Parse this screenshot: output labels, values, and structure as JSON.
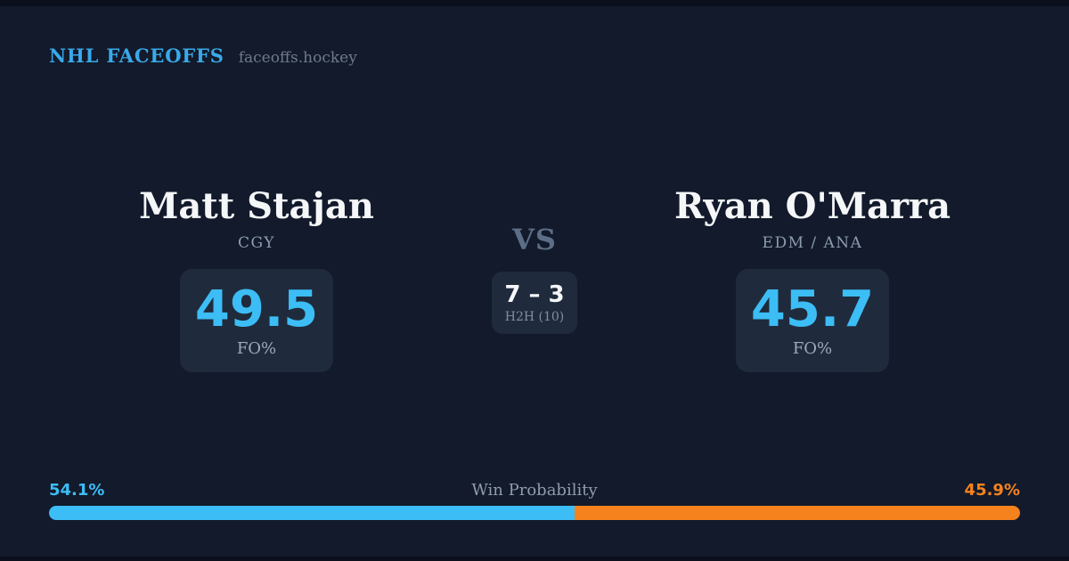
{
  "header": {
    "brand": "NHL FACEOFFS",
    "site": "faceoffs.hockey"
  },
  "players": {
    "left": {
      "name": "Matt Stajan",
      "team": "CGY",
      "fo_value": "49.5",
      "fo_label": "FO%"
    },
    "right": {
      "name": "Ryan O'Marra",
      "team": "EDM / ANA",
      "fo_value": "45.7",
      "fo_label": "FO%"
    }
  },
  "center": {
    "vs_label": "VS",
    "h2h_score": "7 – 3",
    "h2h_label": "H2H (10)"
  },
  "win_probability": {
    "title": "Win Probability",
    "left_pct_label": "54.1%",
    "right_pct_label": "45.9%",
    "left_pct_value": 54.1,
    "right_pct_value": 45.9
  },
  "colors": {
    "background": "#121a2b",
    "edge": "#0b101c",
    "card": "#1f2b3c",
    "brand_blue": "#3aa9e9",
    "stat_blue": "#3cbdf6",
    "accent_orange": "#f6821d",
    "text_white": "#f4f6f8",
    "text_gray": "#8e9cb0"
  }
}
